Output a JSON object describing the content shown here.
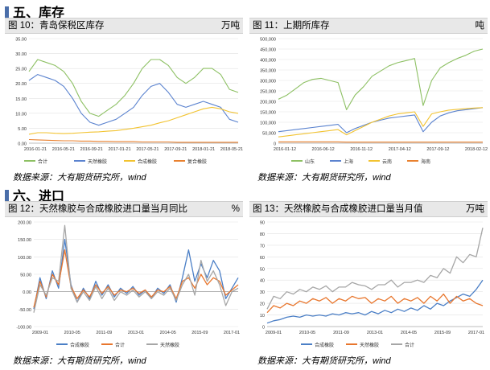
{
  "sections": [
    {
      "heading": "五、库存"
    },
    {
      "heading": "六、进口"
    }
  ],
  "source_text": "数据来源：大有期货研究所，wind",
  "chart_data": [
    {
      "type": "line",
      "title": "图 10：青岛保税区库存",
      "unit": "万吨",
      "x_ticks": [
        "2016-01-21",
        "2016-05-21",
        "2016-09-21",
        "2017-01-21",
        "2017-05-21",
        "2017-09-21",
        "2018-01-21",
        "2018-05-21"
      ],
      "ylim": [
        0,
        35
      ],
      "y_ticks": [
        "0.00",
        "5.00",
        "10.00",
        "15.00",
        "20.00",
        "25.00",
        "30.00",
        "35.00"
      ],
      "legend": "bottom",
      "series": [
        {
          "name": "合计",
          "color": "#8dc063",
          "values": [
            24,
            28,
            27,
            26,
            24,
            20,
            14,
            10,
            9,
            11,
            13,
            16,
            20,
            25,
            28,
            28,
            26,
            22,
            20,
            22,
            25,
            25,
            23,
            18,
            17
          ]
        },
        {
          "name": "天然橡胶",
          "color": "#5b83cf",
          "values": [
            21,
            23,
            22,
            21,
            19,
            15,
            10,
            7,
            6,
            7,
            8,
            10,
            12,
            16,
            19,
            20,
            17,
            13,
            12,
            13,
            14,
            13,
            12,
            8,
            7
          ]
        },
        {
          "name": "合成橡胶",
          "color": "#f2c330",
          "values": [
            3,
            3.5,
            3.5,
            3.3,
            3.2,
            3.3,
            3.5,
            3.7,
            3.8,
            4,
            4.2,
            4.6,
            5,
            5.5,
            6,
            6.8,
            7.5,
            8.5,
            9.5,
            10.5,
            11.5,
            12,
            11.5,
            10.5,
            10
          ]
        },
        {
          "name": "复合橡胶",
          "color": "#e9812f",
          "values": [
            1.2,
            1.1,
            1.0,
            0.9,
            0.8,
            0.8,
            0.7,
            0.7,
            0.6,
            0.6,
            0.5,
            0.5,
            0.5,
            0.4,
            0.4,
            0.4,
            0.4,
            0.3,
            0.3,
            0.3,
            0.3,
            0.3,
            0.3,
            0.3,
            0.3
          ]
        }
      ]
    },
    {
      "type": "line",
      "title": "图 11：上期所库存",
      "unit": "吨",
      "x_ticks": [
        "2016-01-12",
        "2016-06-12",
        "2016-11-12",
        "2017-04-12",
        "2017-09-12",
        "2018-02-12"
      ],
      "ylim": [
        0,
        500000
      ],
      "y_ticks": [
        "0",
        "50,000",
        "100,000",
        "150,000",
        "200,000",
        "250,000",
        "300,000",
        "350,000",
        "400,000",
        "450,000",
        "500,000"
      ],
      "legend": "bottom",
      "series": [
        {
          "name": "山东",
          "color": "#8dc063",
          "values": [
            210000,
            230000,
            260000,
            290000,
            305000,
            310000,
            300000,
            290000,
            160000,
            230000,
            270000,
            320000,
            345000,
            370000,
            385000,
            395000,
            405000,
            180000,
            300000,
            360000,
            385000,
            405000,
            420000,
            440000,
            450000
          ]
        },
        {
          "name": "上海",
          "color": "#5b83cf",
          "values": [
            55000,
            60000,
            65000,
            70000,
            75000,
            80000,
            85000,
            90000,
            50000,
            70000,
            85000,
            100000,
            110000,
            120000,
            125000,
            130000,
            135000,
            55000,
            100000,
            130000,
            145000,
            155000,
            160000,
            165000,
            170000
          ]
        },
        {
          "name": "云南",
          "color": "#f2c330",
          "values": [
            30000,
            35000,
            40000,
            45000,
            50000,
            55000,
            60000,
            65000,
            40000,
            60000,
            80000,
            100000,
            115000,
            130000,
            140000,
            145000,
            150000,
            80000,
            140000,
            150000,
            158000,
            162000,
            165000,
            168000,
            170000
          ]
        },
        {
          "name": "海南",
          "color": "#e9812f",
          "values": [
            6000,
            6000,
            6000,
            6000,
            6000,
            6000,
            6000,
            6000,
            5000,
            5000,
            5000,
            5000,
            5000,
            5000,
            5000,
            5000,
            5000,
            5000,
            5000,
            5000,
            5000,
            5000,
            5000,
            5000,
            5000
          ]
        }
      ]
    },
    {
      "type": "line",
      "title": "图 12：天然橡胶与合成橡胶进口量当月同比",
      "unit": "%",
      "x_ticks": [
        "2009-01",
        "2010-05",
        "2011-09",
        "2013-01",
        "2014-05",
        "2015-09",
        "2017-01"
      ],
      "ylim": [
        -100,
        200
      ],
      "y_ticks": [
        "-100.00",
        "-50.00",
        "0.00",
        "50.00",
        "100.00",
        "150.00",
        "200.00"
      ],
      "legend": "bottom",
      "series": [
        {
          "name": "合成橡胶",
          "color": "#4b7fc6",
          "values": [
            -50,
            40,
            -20,
            60,
            10,
            150,
            20,
            -30,
            10,
            -20,
            30,
            -10,
            20,
            -15,
            10,
            -5,
            15,
            -10,
            5,
            -20,
            10,
            -5,
            20,
            -30,
            40,
            120,
            30,
            80,
            40,
            90,
            60,
            -20,
            10,
            40
          ]
        },
        {
          "name": "合计",
          "color": "#e8762d",
          "values": [
            -45,
            30,
            -15,
            50,
            20,
            120,
            15,
            -20,
            5,
            -15,
            20,
            -5,
            15,
            -10,
            5,
            0,
            10,
            -5,
            5,
            -15,
            5,
            0,
            15,
            -20,
            30,
            40,
            10,
            50,
            20,
            40,
            30,
            -10,
            5,
            20
          ]
        },
        {
          "name": "天然橡胶",
          "color": "#a6a6a6",
          "values": [
            -60,
            20,
            -10,
            40,
            30,
            190,
            10,
            -30,
            0,
            -25,
            15,
            -20,
            10,
            -25,
            0,
            -10,
            5,
            -15,
            0,
            -20,
            0,
            -10,
            10,
            -25,
            20,
            50,
            -10,
            90,
            30,
            60,
            20,
            -40,
            0,
            10
          ]
        }
      ]
    },
    {
      "type": "line",
      "title": "图 13：天然橡胶与合成橡胶进口量当月值",
      "unit": "万吨",
      "x_ticks": [
        "2009-01",
        "2010-05",
        "2011-09",
        "2013-01",
        "2014-05",
        "2015-09",
        "2017-01"
      ],
      "ylim": [
        0,
        90
      ],
      "y_ticks": [
        "0",
        "10",
        "20",
        "30",
        "40",
        "50",
        "60",
        "70",
        "80",
        "90"
      ],
      "legend": "bottom",
      "series": [
        {
          "name": "合成橡胶",
          "color": "#4b7fc6",
          "values": [
            3,
            5,
            6,
            8,
            9,
            8,
            10,
            9,
            10,
            9,
            11,
            10,
            12,
            11,
            12,
            10,
            13,
            11,
            14,
            12,
            15,
            13,
            16,
            14,
            18,
            15,
            20,
            18,
            22,
            25,
            28,
            26,
            32,
            40
          ]
        },
        {
          "name": "天然橡胶",
          "color": "#e8762d",
          "values": [
            12,
            18,
            16,
            20,
            18,
            22,
            20,
            24,
            22,
            25,
            20,
            24,
            22,
            26,
            24,
            25,
            20,
            24,
            22,
            26,
            20,
            24,
            22,
            25,
            20,
            26,
            22,
            28,
            20,
            26,
            22,
            24,
            20,
            18
          ]
        },
        {
          "name": "合计",
          "color": "#a6a6a6",
          "values": [
            15,
            26,
            24,
            30,
            28,
            32,
            30,
            34,
            32,
            35,
            30,
            34,
            34,
            38,
            36,
            35,
            32,
            36,
            36,
            40,
            34,
            38,
            38,
            40,
            38,
            44,
            42,
            50,
            46,
            60,
            55,
            62,
            60,
            85
          ]
        }
      ]
    }
  ]
}
